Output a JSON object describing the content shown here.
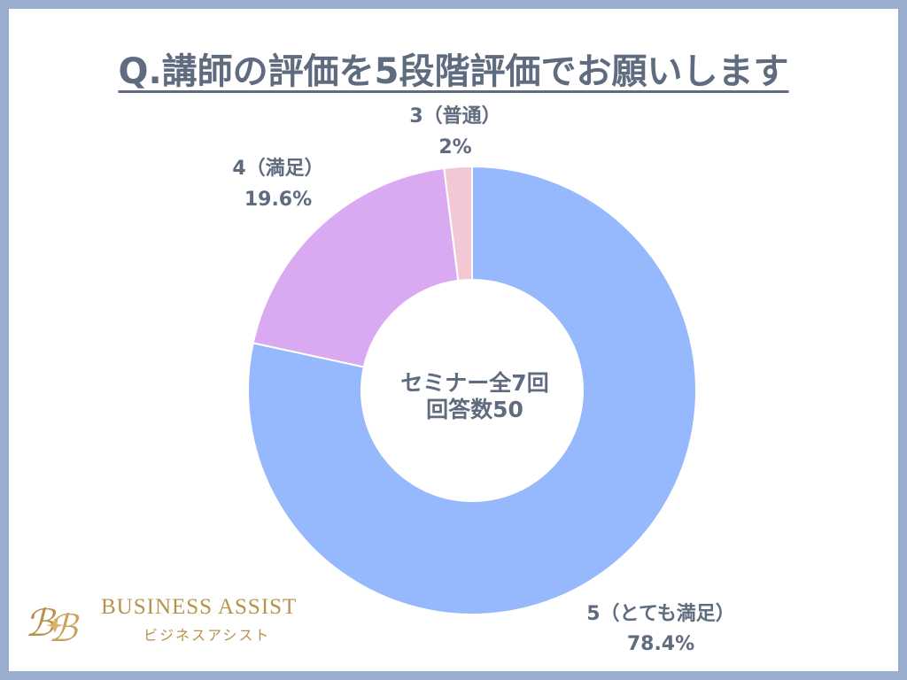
{
  "title": "Q.講師の評価を5段階評価でお願いします",
  "brand": {
    "name": "BUSINESS ASSIST",
    "sub": "ビジネスアシスト",
    "color": "#b8924a"
  },
  "chart_data": {
    "type": "pie",
    "variant": "donut",
    "title": "Q.講師の評価を5段階評価でお願いします",
    "center_text": [
      "セミナー全7回",
      "回答数50"
    ],
    "start_angle_deg": 0,
    "direction": "clockwise",
    "slices": [
      {
        "category": "5（とても満足）",
        "value": 78.4,
        "value_label": "78.4%",
        "color": "#96b8fc"
      },
      {
        "category": "4（満足）",
        "value": 19.6,
        "value_label": "19.6%",
        "color": "#d9aaf2"
      },
      {
        "category": "3（普通）",
        "value": 2,
        "value_label": "2%",
        "color": "#f1c8d3"
      }
    ]
  }
}
